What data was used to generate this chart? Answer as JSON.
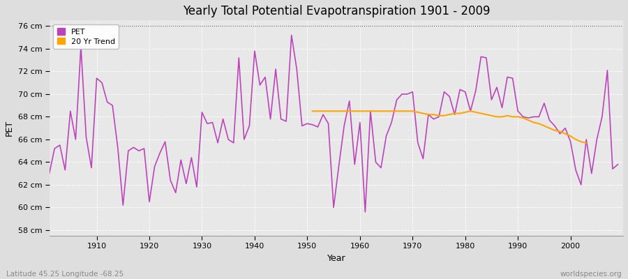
{
  "title": "Yearly Total Potential Evapotranspiration 1901 - 2009",
  "xlabel": "Year",
  "ylabel": "PET",
  "subtitle_left": "Latitude 45.25 Longitude -68.25",
  "subtitle_right": "worldspecies.org",
  "pet_color": "#BB44BB",
  "trend_color": "#FFA500",
  "bg_color": "#DEDEDE",
  "plot_bg_color": "#E8E8E8",
  "ylim": [
    57.5,
    76.5
  ],
  "yticks": [
    58,
    60,
    62,
    64,
    66,
    68,
    70,
    72,
    74,
    76
  ],
  "ytick_labels": [
    "58 cm",
    "60 cm",
    "62 cm",
    "64 cm",
    "66 cm",
    "68 cm",
    "70 cm",
    "72 cm",
    "74 cm",
    "76 cm"
  ],
  "xlim": [
    1901,
    2010
  ],
  "xticks": [
    1910,
    1920,
    1930,
    1940,
    1950,
    1960,
    1970,
    1980,
    1990,
    2000
  ],
  "years": [
    1901,
    1902,
    1903,
    1904,
    1905,
    1906,
    1907,
    1908,
    1909,
    1910,
    1911,
    1912,
    1913,
    1914,
    1915,
    1916,
    1917,
    1918,
    1919,
    1920,
    1921,
    1922,
    1923,
    1924,
    1925,
    1926,
    1927,
    1928,
    1929,
    1930,
    1931,
    1932,
    1933,
    1934,
    1935,
    1936,
    1937,
    1938,
    1939,
    1940,
    1941,
    1942,
    1943,
    1944,
    1945,
    1946,
    1947,
    1948,
    1949,
    1950,
    1951,
    1952,
    1953,
    1954,
    1955,
    1956,
    1957,
    1958,
    1959,
    1960,
    1961,
    1962,
    1963,
    1964,
    1965,
    1966,
    1967,
    1968,
    1969,
    1970,
    1971,
    1972,
    1973,
    1974,
    1975,
    1976,
    1977,
    1978,
    1979,
    1980,
    1981,
    1982,
    1983,
    1984,
    1985,
    1986,
    1987,
    1988,
    1989,
    1990,
    1991,
    1992,
    1993,
    1994,
    1995,
    1996,
    1997,
    1998,
    1999,
    2000,
    2001,
    2002,
    2003,
    2004,
    2005,
    2006,
    2007,
    2008,
    2009
  ],
  "pet_values": [
    63.0,
    65.2,
    65.5,
    63.3,
    68.5,
    66.0,
    74.2,
    66.2,
    63.5,
    71.4,
    71.0,
    69.3,
    69.0,
    65.3,
    60.2,
    65.0,
    65.3,
    65.0,
    65.2,
    60.5,
    63.6,
    64.8,
    65.8,
    62.4,
    61.3,
    64.2,
    62.1,
    64.4,
    61.8,
    68.4,
    67.4,
    67.5,
    65.7,
    67.8,
    66.0,
    65.7,
    73.2,
    66.0,
    67.2,
    73.8,
    70.8,
    71.5,
    67.8,
    72.2,
    67.8,
    67.6,
    75.2,
    72.2,
    67.2,
    67.4,
    67.3,
    67.1,
    68.2,
    67.4,
    60.0,
    63.7,
    67.2,
    69.4,
    63.8,
    67.5,
    59.6,
    68.5,
    64.0,
    63.5,
    66.3,
    67.5,
    69.5,
    70.0,
    70.0,
    70.2,
    65.7,
    64.3,
    68.2,
    67.8,
    68.0,
    70.2,
    69.8,
    68.2,
    70.4,
    70.2,
    68.5,
    70.3,
    73.3,
    73.2,
    69.5,
    70.6,
    68.8,
    71.5,
    71.4,
    68.5,
    68.0,
    67.9,
    68.0,
    68.0,
    69.2,
    67.7,
    67.2,
    66.5,
    67.0,
    65.8,
    63.3,
    62.0,
    66.0,
    63.0,
    66.0,
    68.0,
    72.1,
    63.4,
    63.8
  ],
  "trend_years": [
    1951,
    1952,
    1953,
    1954,
    1955,
    1956,
    1957,
    1958,
    1959,
    1960,
    1961,
    1962,
    1963,
    1964,
    1965,
    1966,
    1967,
    1968,
    1969,
    1970,
    1971,
    1972,
    1973,
    1974,
    1975,
    1976,
    1977,
    1978,
    1979,
    1980,
    1981,
    1982,
    1983,
    1984,
    1985,
    1986,
    1987,
    1988,
    1989,
    1990,
    1991,
    1992,
    1993,
    1994,
    1995,
    1996,
    1997,
    1998,
    1999,
    2000,
    2001,
    2002,
    2003
  ],
  "trend_values": [
    68.5,
    68.5,
    68.5,
    68.5,
    68.5,
    68.5,
    68.5,
    68.5,
    68.5,
    68.5,
    68.5,
    68.5,
    68.5,
    68.5,
    68.5,
    68.5,
    68.5,
    68.5,
    68.5,
    68.5,
    68.4,
    68.3,
    68.2,
    68.2,
    68.1,
    68.1,
    68.2,
    68.3,
    68.3,
    68.4,
    68.5,
    68.4,
    68.3,
    68.2,
    68.1,
    68.0,
    68.0,
    68.1,
    68.0,
    68.0,
    67.9,
    67.7,
    67.5,
    67.4,
    67.2,
    67.0,
    66.8,
    66.7,
    66.5,
    66.3,
    66.0,
    65.8,
    65.7
  ]
}
